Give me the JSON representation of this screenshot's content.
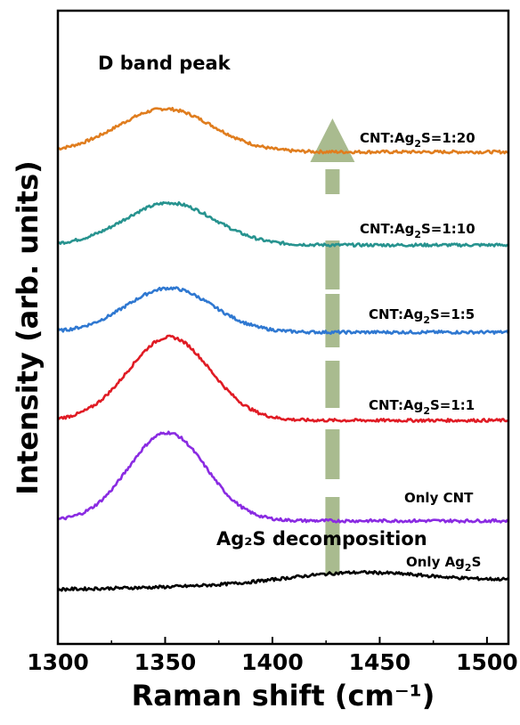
{
  "chart_data": {
    "type": "line",
    "xlabel": "Raman shift (cm⁻¹)",
    "ylabel": "Intensity (arb. units)",
    "xlim": [
      1300,
      1510
    ],
    "xticks": [
      1300,
      1350,
      1400,
      1450,
      1500
    ],
    "grid": false,
    "legend": "labels placed at right end of each curve",
    "annotations": {
      "d_band": "D band peak",
      "decomposition": "Ag₂S decomposition"
    },
    "arrow_color": "#a9bb8f",
    "series": [
      {
        "name": "CNT:Ag₂S=1:20",
        "color": "#e07d1e",
        "offset": 5,
        "baseline": 0.48,
        "peaks": [
          {
            "x": 1350,
            "h": 0.88,
            "w": 22
          }
        ]
      },
      {
        "name": "CNT:Ag₂S=1:10",
        "color": "#27938f",
        "offset": 4,
        "baseline": 0.38,
        "peaks": [
          {
            "x": 1352,
            "h": 0.86,
            "w": 21
          }
        ]
      },
      {
        "name": "CNT:Ag₂S=1:5",
        "color": "#2f78d1",
        "offset": 3,
        "baseline": 0.4,
        "peaks": [
          {
            "x": 1352,
            "h": 0.9,
            "w": 20
          }
        ]
      },
      {
        "name": "CNT:Ag₂S=1:1",
        "color": "#e01b24",
        "offset": 2,
        "baseline": 0.4,
        "peaks": [
          {
            "x": 1352,
            "h": 1.7,
            "w": 19
          }
        ]
      },
      {
        "name": "Only CNT",
        "color": "#8a2be2",
        "offset": 1,
        "baseline": 0.15,
        "peaks": [
          {
            "x": 1351,
            "h": 1.8,
            "w": 18
          }
        ]
      },
      {
        "name": "Only Ag₂S",
        "color": "#000000",
        "offset": 0,
        "baseline": 0.55,
        "peaks": [
          {
            "x": 1438,
            "h": 0.22,
            "w": 32
          }
        ]
      }
    ]
  }
}
